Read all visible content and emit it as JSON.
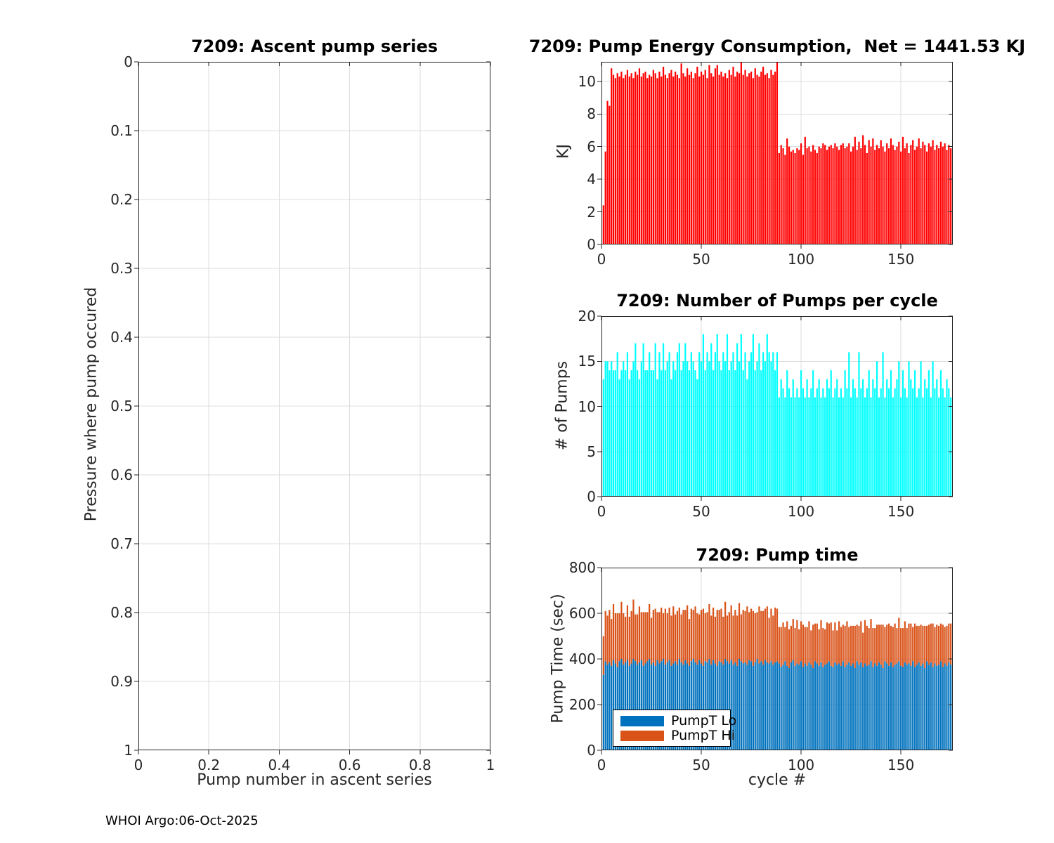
{
  "figure": {
    "footer": "WHOI Argo:06-Oct-2025"
  },
  "colors": {
    "axis": "#262626",
    "grid": "#dcdcdc",
    "title": "#000000",
    "background": "#ffffff"
  },
  "chart_data": [
    {
      "id": "ascent",
      "type": "scatter",
      "title": "7209: Ascent pump series",
      "xlabel": "Pump number in ascent series",
      "ylabel": "Pressure where pump occured",
      "xlim": [
        0,
        1
      ],
      "ylim": [
        0,
        1
      ],
      "y_reversed": true,
      "grid": true,
      "xticks": [
        0,
        0.2,
        0.4,
        0.6,
        0.8,
        1
      ],
      "yticks": [
        0,
        0.1,
        0.2,
        0.3,
        0.4,
        0.5,
        0.6,
        0.7,
        0.8,
        0.9,
        1
      ],
      "points": []
    },
    {
      "id": "energy",
      "type": "bar",
      "title": "7209: Pump Energy Consumption,  Net = 1441.53 KJ",
      "net_kj_label": "1441.53",
      "ylabel": "KJ",
      "bar_color": "#ff0000",
      "x_start": 1,
      "xlim": [
        0,
        176
      ],
      "ylim": [
        0,
        11.2
      ],
      "grid": true,
      "xticks": [
        0,
        50,
        100,
        150
      ],
      "yticks": [
        0,
        2,
        4,
        6,
        8,
        10
      ],
      "values": [
        2.4,
        5.7,
        8.8,
        8.5,
        10.8,
        10.4,
        10.2,
        10.5,
        10.3,
        10.6,
        10.2,
        10.4,
        10.7,
        10.3,
        10.5,
        10.2,
        10.6,
        10.4,
        10.8,
        10.3,
        10.5,
        10.6,
        10.2,
        10.4,
        10.3,
        10.7,
        10.5,
        10.2,
        10.6,
        10.3,
        10.9,
        10.4,
        10.2,
        10.5,
        10.7,
        10.3,
        10.6,
        10.4,
        10.2,
        11.1,
        10.5,
        10.3,
        10.8,
        10.4,
        10.6,
        10.2,
        10.5,
        10.9,
        10.3,
        10.6,
        10.4,
        10.7,
        10.2,
        11.0,
        10.5,
        10.3,
        10.8,
        11.0,
        10.4,
        10.6,
        10.3,
        10.5,
        10.2,
        10.7,
        10.4,
        10.9,
        10.3,
        10.6,
        10.5,
        11.3,
        10.4,
        10.7,
        10.3,
        10.5,
        10.6,
        10.2,
        10.8,
        10.4,
        10.3,
        10.6,
        10.9,
        10.4,
        10.5,
        10.2,
        10.7,
        10.4,
        10.6,
        11.3,
        5.6,
        6.1,
        5.9,
        5.5,
        6.5,
        6.0,
        5.7,
        5.8,
        5.6,
        5.9,
        5.8,
        6.2,
        5.5,
        6.6,
        5.9,
        6.0,
        5.7,
        6.1,
        5.8,
        5.6,
        6.0,
        5.9,
        6.2,
        6.1,
        5.8,
        6.0,
        6.1,
        5.9,
        6.2,
        6.0,
        5.8,
        6.1,
        6.2,
        5.9,
        6.0,
        6.2,
        5.7,
        6.0,
        6.6,
        5.8,
        6.3,
        5.9,
        6.7,
        6.1,
        5.6,
        6.4,
        6.0,
        6.5,
        5.8,
        6.1,
        5.9,
        6.4,
        6.0,
        5.7,
        6.2,
        5.9,
        6.5,
        6.1,
        5.8,
        6.0,
        6.3,
        5.7,
        6.6,
        5.9,
        6.2,
        5.6,
        6.1,
        6.4,
        5.8,
        6.0,
        6.5,
        5.9,
        6.3,
        6.1,
        5.7,
        6.2,
        6.0,
        6.4,
        5.8,
        6.1,
        5.9,
        6.3,
        6.0,
        6.2,
        5.8,
        6.1,
        5.9
      ]
    },
    {
      "id": "pumps",
      "type": "bar",
      "title": "7209: Number of Pumps per cycle",
      "ylabel": "# of Pumps",
      "bar_color": "#00ffff",
      "x_start": 1,
      "xlim": [
        0,
        176
      ],
      "ylim": [
        0,
        20
      ],
      "grid": true,
      "xticks": [
        0,
        50,
        100,
        150
      ],
      "yticks": [
        0,
        5,
        10,
        15,
        20
      ],
      "values": [
        13,
        15,
        15,
        14,
        15,
        14,
        14,
        16,
        13,
        14,
        15,
        14,
        16,
        13,
        14,
        15,
        17,
        14,
        13,
        15,
        17,
        14,
        14,
        16,
        14,
        14,
        17,
        13,
        16,
        14,
        17,
        14,
        15,
        16,
        13,
        15,
        14,
        16,
        17,
        14,
        15,
        17,
        15,
        14,
        16,
        15,
        14,
        13,
        16,
        15,
        18,
        14,
        16,
        15,
        17,
        14,
        16,
        18,
        15,
        14,
        16,
        15,
        18,
        14,
        15,
        16,
        14,
        17,
        15,
        18,
        14,
        16,
        13,
        15,
        16,
        18,
        14,
        15,
        17,
        14,
        16,
        15,
        18,
        16,
        15,
        16,
        14,
        16,
        11,
        13,
        12,
        11,
        14,
        12,
        11,
        13,
        11,
        12,
        11,
        14,
        12,
        11,
        13,
        11,
        12,
        14,
        11,
        12,
        13,
        11,
        12,
        11,
        13,
        12,
        14,
        11,
        12,
        13,
        11,
        12,
        11,
        14,
        12,
        16,
        11,
        13,
        12,
        11,
        16,
        12,
        13,
        11,
        12,
        14,
        11,
        13,
        12,
        15,
        11,
        12,
        16,
        11,
        13,
        12,
        14,
        11,
        12,
        13,
        15,
        11,
        14,
        12,
        11,
        15,
        13,
        12,
        14,
        11,
        12,
        15,
        11,
        13,
        12,
        14,
        11,
        15,
        12,
        13,
        11,
        14,
        12,
        11,
        13,
        12,
        11
      ]
    },
    {
      "id": "pumptime",
      "type": "stacked-bar",
      "title": "7209: Pump time",
      "xlabel": "cycle #",
      "ylabel": "Pump Time (sec)",
      "x_start": 1,
      "xlim": [
        0,
        176
      ],
      "ylim": [
        0,
        800
      ],
      "grid": true,
      "xticks": [
        0,
        50,
        100,
        150
      ],
      "yticks": [
        0,
        200,
        400,
        600,
        800
      ],
      "legend_position": "southwest",
      "series": [
        {
          "name": "PumpT Lo",
          "color": "#0072bd",
          "values": [
            330,
            390,
            375,
            385,
            370,
            395,
            380,
            365,
            390,
            400,
            375,
            385,
            395,
            370,
            380,
            400,
            390,
            375,
            385,
            395,
            370,
            380,
            390,
            400,
            375,
            385,
            370,
            395,
            380,
            390,
            400,
            375,
            385,
            395,
            370,
            380,
            390,
            375,
            400,
            385,
            375,
            395,
            380,
            370,
            390,
            400,
            385,
            375,
            395,
            380,
            370,
            390,
            385,
            400,
            375,
            395,
            380,
            370,
            390,
            385,
            375,
            400,
            390,
            380,
            395,
            375,
            385,
            370,
            400,
            390,
            380,
            385,
            375,
            395,
            390,
            370,
            385,
            400,
            380,
            390,
            375,
            395,
            385,
            380,
            390,
            375,
            385,
            390,
            380,
            365,
            375,
            390,
            370,
            360,
            385,
            395,
            370,
            380,
            375,
            390,
            365,
            380,
            370,
            385,
            375,
            360,
            390,
            380,
            370,
            385,
            365,
            375,
            380,
            390,
            370,
            365,
            385,
            375,
            380,
            370,
            390,
            365,
            375,
            385,
            370,
            380,
            360,
            390,
            375,
            385,
            365,
            380,
            370,
            375,
            390,
            365,
            380,
            370,
            385,
            375,
            360,
            390,
            380,
            370,
            385,
            365,
            375,
            380,
            390,
            370,
            365,
            385,
            375,
            380,
            370,
            390,
            365,
            375,
            385,
            370,
            380,
            360,
            390,
            375,
            385,
            365,
            380,
            370,
            375,
            390,
            365,
            380,
            370,
            385,
            375
          ]
        },
        {
          "name": "PumpT Hi",
          "color": "#d95319",
          "values": [
            170,
            220,
            215,
            230,
            205,
            245,
            220,
            235,
            210,
            250,
            225,
            200,
            240,
            215,
            230,
            260,
            205,
            220,
            245,
            210,
            235,
            225,
            215,
            240,
            205,
            230,
            250,
            210,
            225,
            235,
            200,
            245,
            215,
            230,
            220,
            250,
            205,
            235,
            225,
            210,
            240,
            220,
            255,
            205,
            230,
            215,
            245,
            225,
            200,
            235,
            250,
            210,
            220,
            240,
            215,
            230,
            205,
            245,
            225,
            235,
            210,
            250,
            200,
            225,
            240,
            215,
            230,
            220,
            245,
            205,
            235,
            225,
            255,
            210,
            230,
            240,
            215,
            205,
            250,
            220,
            235,
            225,
            245,
            200,
            230,
            215,
            240,
            230,
            160,
            175,
            185,
            150,
            195,
            170,
            160,
            180,
            165,
            190,
            155,
            175,
            185,
            160,
            170,
            180,
            150,
            190,
            165,
            175,
            160,
            185,
            170,
            155,
            180,
            165,
            190,
            160,
            175,
            150,
            185,
            170,
            160,
            180,
            190,
            155,
            175,
            165,
            185,
            160,
            170,
            180,
            150,
            190,
            175,
            160,
            185,
            170,
            155,
            180,
            165,
            175,
            190,
            150,
            170,
            185,
            160,
            175,
            180,
            155,
            190,
            165,
            170,
            180,
            160,
            175,
            185,
            150,
            190,
            170,
            160,
            180,
            165,
            185,
            155,
            175,
            170,
            190,
            160,
            180,
            170,
            165,
            185,
            160,
            175,
            170,
            180
          ]
        }
      ]
    }
  ]
}
